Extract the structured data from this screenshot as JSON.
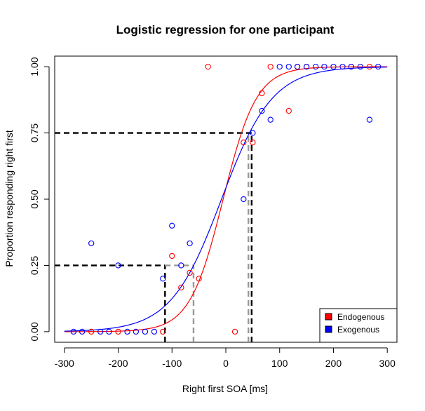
{
  "chart_data": {
    "type": "scatter",
    "title": "Logistic regression for one participant",
    "xlabel": "Right first SOA [ms]",
    "ylabel": "Proportion responding right first",
    "xlim": [
      -318,
      318
    ],
    "ylim": [
      -0.04,
      1.04
    ],
    "x_ticks": [
      -300,
      -200,
      -100,
      0,
      100,
      200,
      300
    ],
    "x_tick_labels": [
      "-300",
      "-200",
      "-100",
      "0",
      "100",
      "200",
      "300"
    ],
    "y_ticks": [
      0,
      0.25,
      0.5,
      0.75,
      1
    ],
    "y_tick_labels": [
      "0.00",
      "0.25",
      "0.50",
      "0.75",
      "1.00"
    ],
    "grid": false,
    "legend_position": "bottom-right",
    "series": [
      {
        "name": "Endogenous",
        "color": "#ff0000",
        "marker": "open-circle",
        "points": [
          {
            "x": -250,
            "y": 0
          },
          {
            "x": -200,
            "y": 0
          },
          {
            "x": -117,
            "y": 0
          },
          {
            "x": -100,
            "y": 0.2857
          },
          {
            "x": -83,
            "y": 0.1667
          },
          {
            "x": -67,
            "y": 0.2222
          },
          {
            "x": -50,
            "y": 0.2
          },
          {
            "x": -33,
            "y": 1
          },
          {
            "x": 17,
            "y": 0
          },
          {
            "x": 33,
            "y": 0.7143
          },
          {
            "x": 50,
            "y": 0.7143
          },
          {
            "x": 67,
            "y": 0.9
          },
          {
            "x": 83,
            "y": 1
          },
          {
            "x": 117,
            "y": 0.8333
          },
          {
            "x": 133,
            "y": 1
          },
          {
            "x": 150,
            "y": 1
          },
          {
            "x": 233,
            "y": 1
          },
          {
            "x": 267,
            "y": 1
          }
        ],
        "fit": {
          "midpoint": -5,
          "slope": 0.0322
        },
        "thresholds": {
          "p25": -113,
          "p75": 44
        }
      },
      {
        "name": "Exogenous",
        "color": "#0000ff",
        "marker": "open-circle",
        "points": [
          {
            "x": -283,
            "y": 0
          },
          {
            "x": -267,
            "y": 0
          },
          {
            "x": -250,
            "y": 0.3333
          },
          {
            "x": -233,
            "y": 0
          },
          {
            "x": -217,
            "y": 0
          },
          {
            "x": -200,
            "y": 0.25
          },
          {
            "x": -183,
            "y": 0
          },
          {
            "x": -167,
            "y": 0
          },
          {
            "x": -150,
            "y": 0
          },
          {
            "x": -133,
            "y": 0
          },
          {
            "x": -117,
            "y": 0.2
          },
          {
            "x": -100,
            "y": 0.4
          },
          {
            "x": -83,
            "y": 0.25
          },
          {
            "x": -67,
            "y": 0.3333
          },
          {
            "x": 33,
            "y": 0.5
          },
          {
            "x": 50,
            "y": 0.75
          },
          {
            "x": 67,
            "y": 0.8333
          },
          {
            "x": 83,
            "y": 0.8
          },
          {
            "x": 100,
            "y": 1
          },
          {
            "x": 117,
            "y": 1
          },
          {
            "x": 133,
            "y": 1
          },
          {
            "x": 150,
            "y": 1
          },
          {
            "x": 167,
            "y": 1
          },
          {
            "x": 183,
            "y": 1
          },
          {
            "x": 200,
            "y": 1
          },
          {
            "x": 217,
            "y": 1
          },
          {
            "x": 233,
            "y": 1
          },
          {
            "x": 250,
            "y": 1
          },
          {
            "x": 267,
            "y": 0.8
          },
          {
            "x": 283,
            "y": 1
          }
        ],
        "fit": {
          "midpoint": -8,
          "slope": 0.02118
        },
        "thresholds": {
          "p25": -60,
          "p75": 40
        }
      }
    ],
    "reference_lines": [
      {
        "style": "black-dashed",
        "y": 0.75,
        "x_end": 48
      },
      {
        "style": "black-dashed",
        "y": 0.25,
        "x_end": -113
      },
      {
        "style": "black-dashed-vertical",
        "x": 48,
        "y_top": 0.75
      },
      {
        "style": "black-dashed-vertical",
        "x": -113,
        "y_top": 0.25
      },
      {
        "style": "gray-dashed-vertical",
        "x": 42,
        "y_top": 0.75
      },
      {
        "style": "gray-dashed-vertical",
        "x": -60,
        "y_top": 0.25
      },
      {
        "style": "gray-dashed",
        "y": 0.25,
        "x_start": -113,
        "x_end": -60
      }
    ]
  }
}
